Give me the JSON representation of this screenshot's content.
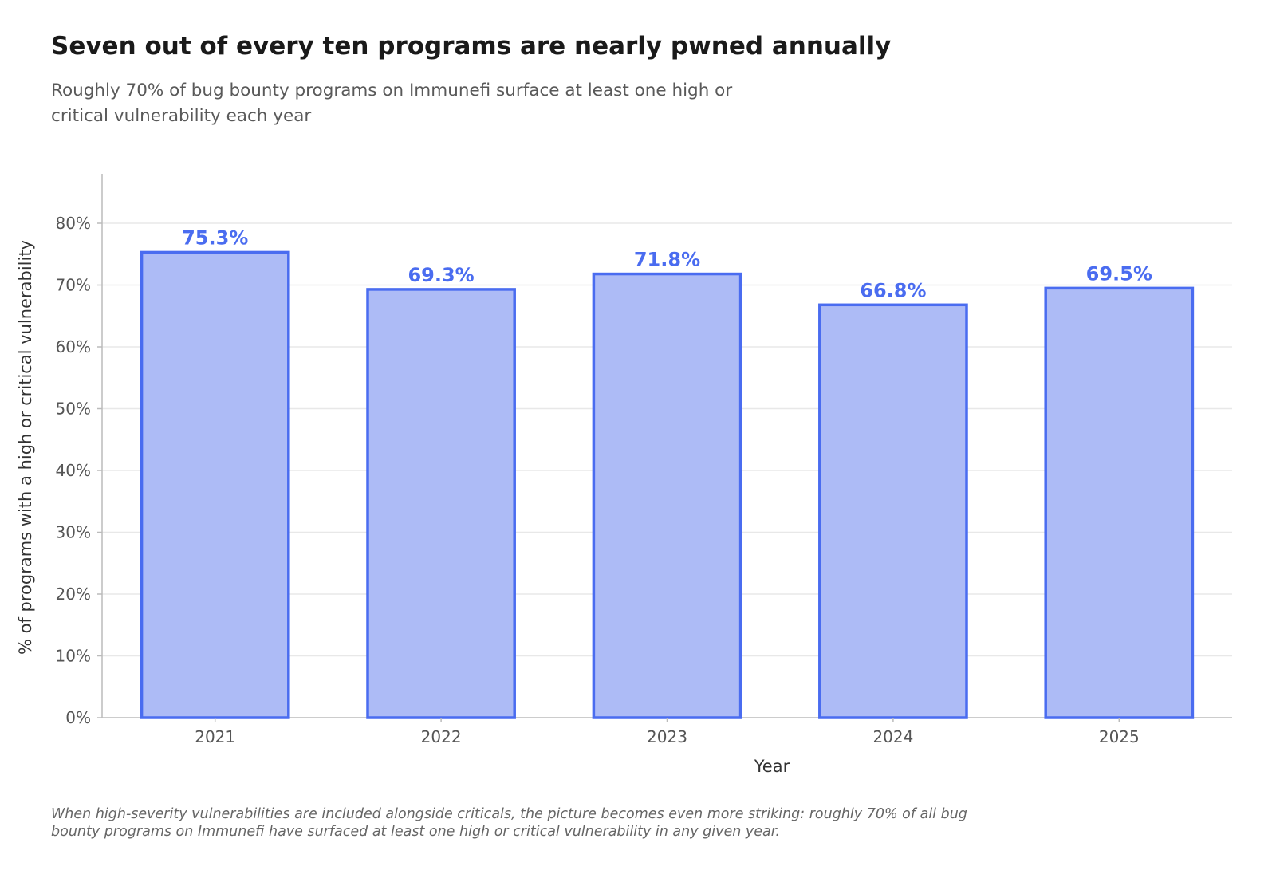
{
  "title": "Seven out of every ten programs are nearly pwned annually",
  "subtitle": "Roughly 70% of bug bounty programs on Immunefi surface at least one high or critical vulnerability each year",
  "footnote": "When high-severity vulnerabilities are included alongside criticals, the picture becomes even more striking: roughly 70% of all bug bounty programs on Immunefi have surfaced at least one high or critical vulnerability in any given year.",
  "colors": {
    "bar_fill": "#adbbf6",
    "bar_stroke": "#4a6cf0",
    "label": "#4a6cf0",
    "grid": "#e8e8e8",
    "axis": "#bbbbbb",
    "tick_text": "#555555",
    "axis_label": "#333333"
  },
  "chart_data": {
    "type": "bar",
    "categories": [
      "2021",
      "2022",
      "2023",
      "2024",
      "2025"
    ],
    "values": [
      75.3,
      69.3,
      71.8,
      66.8,
      69.5
    ],
    "data_labels": [
      "75.3%",
      "69.3%",
      "71.8%",
      "66.8%",
      "69.5%"
    ],
    "xlabel": "Year",
    "ylabel": "% of programs with a high or critical vulnerability",
    "ylim": [
      0,
      88
    ],
    "yticks": [
      0,
      10,
      20,
      30,
      40,
      50,
      60,
      70,
      80
    ],
    "ytick_labels": [
      "0%",
      "10%",
      "20%",
      "30%",
      "40%",
      "50%",
      "60%",
      "70%",
      "80%"
    ],
    "grid": "horizontal",
    "legend": "none"
  }
}
